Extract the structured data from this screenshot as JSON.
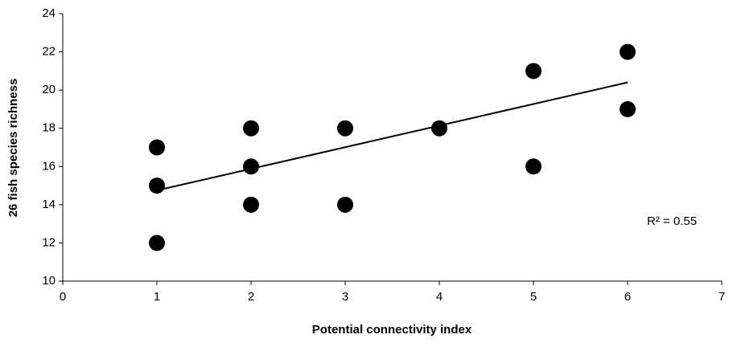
{
  "chart_data": {
    "type": "scatter",
    "xlabel": "Potential connectivity index",
    "ylabel": "26 fish species richness",
    "x": [
      1,
      1,
      1,
      2,
      2,
      2,
      3,
      3,
      4,
      5,
      5,
      6,
      6
    ],
    "y": [
      17,
      15,
      12,
      18,
      16,
      14,
      18,
      14,
      18,
      21,
      16,
      22,
      19
    ],
    "color": "#000000",
    "trendline": {
      "x": [
        1,
        6
      ],
      "y": [
        14.75,
        20.4
      ],
      "color": "#000000"
    },
    "annotation": "R² = 0.55",
    "xlim": [
      0,
      7
    ],
    "xticks": [
      0,
      1,
      2,
      3,
      4,
      5,
      6,
      7
    ],
    "ylim": [
      10,
      24
    ],
    "yticks": [
      10,
      12,
      14,
      16,
      18,
      20,
      22,
      24
    ],
    "grid": false
  }
}
